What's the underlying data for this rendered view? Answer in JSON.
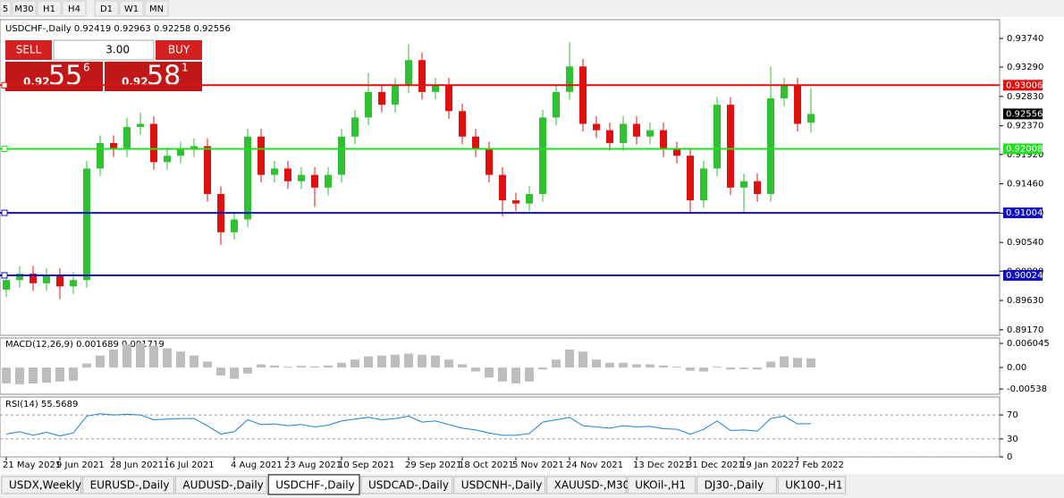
{
  "toolbar": [
    "5",
    "M30",
    "H1",
    "H4",
    "D1",
    "W1",
    "MN"
  ],
  "trade_panel": {
    "sell": "SELL",
    "buy": "BUY",
    "lots": "3.00",
    "bid": {
      "prefix": "0.92",
      "big": "55",
      "sup": "6"
    },
    "ask": {
      "prefix": "0.92",
      "big": "58",
      "sup": "1"
    }
  },
  "tabs": [
    "USDX,Weekly",
    "EURUSD-,Daily",
    "AUDUSD-,Daily",
    "USDCHF-,Daily",
    "USDCAD-,Daily",
    "USDCNH-,Daily",
    "XAUUSD-,M30",
    "UKOil-,H1",
    "DJ30-,Daily",
    "UK100-,H1"
  ],
  "active_tab": "USDCHF-,Daily",
  "chart_data": [
    {
      "type": "candlestick",
      "title": "USDCHF-,Daily 0.92419 0.92963 0.92258 0.92556",
      "categories": [
        "21 May 2021",
        null,
        null,
        null,
        "9 Jun 2021",
        null,
        null,
        null,
        "28 Jun 2021",
        null,
        null,
        null,
        "16 Jul 2021",
        null,
        null,
        null,
        null,
        "4 Aug 2021",
        null,
        null,
        null,
        "23 Aug 2021",
        null,
        null,
        null,
        "10 Sep 2021",
        null,
        null,
        null,
        null,
        "29 Sep 2021",
        null,
        null,
        null,
        "18 Oct 2021",
        null,
        null,
        null,
        "5 Nov 2021",
        null,
        null,
        null,
        "24 Nov 2021",
        null,
        null,
        null,
        null,
        "13 Dec 2021",
        null,
        null,
        null,
        "31 Dec 2021",
        null,
        null,
        null,
        "19 Jan 2022",
        null,
        null,
        null,
        "7 Feb 2022",
        null
      ],
      "open": [
        0.898,
        0.8995,
        0.9005,
        0.899,
        0.9002,
        0.8985,
        0.8995,
        0.917,
        0.921,
        0.92,
        0.9235,
        0.924,
        0.918,
        0.919,
        0.92,
        0.9205,
        0.913,
        0.907,
        0.909,
        0.922,
        0.916,
        0.917,
        0.915,
        0.916,
        0.914,
        0.916,
        0.922,
        0.925,
        0.929,
        0.927,
        0.93,
        0.934,
        0.929,
        0.93,
        0.926,
        0.922,
        0.92,
        0.916,
        0.912,
        0.9115,
        0.913,
        0.925,
        0.929,
        0.933,
        0.924,
        0.923,
        0.921,
        0.924,
        0.922,
        0.923,
        0.92,
        0.919,
        0.912,
        0.917,
        0.927,
        0.914,
        0.915,
        0.913,
        0.928,
        0.93,
        0.92419
      ],
      "high": [
        0.9007,
        0.9017,
        0.9017,
        0.9014,
        0.9014,
        0.9007,
        0.9182,
        0.9222,
        0.9222,
        0.925,
        0.9258,
        0.9252,
        0.9202,
        0.9212,
        0.9217,
        0.9217,
        0.9142,
        0.9102,
        0.9232,
        0.9232,
        0.9182,
        0.9182,
        0.9172,
        0.9172,
        0.9172,
        0.9232,
        0.9262,
        0.932,
        0.9302,
        0.9312,
        0.9365,
        0.9352,
        0.9312,
        0.9312,
        0.9272,
        0.9232,
        0.9212,
        0.9172,
        0.9132,
        0.9142,
        0.9262,
        0.9302,
        0.9368,
        0.9342,
        0.9252,
        0.9242,
        0.9252,
        0.9252,
        0.9242,
        0.9242,
        0.9212,
        0.9202,
        0.9182,
        0.9282,
        0.9282,
        0.9162,
        0.9162,
        0.933,
        0.9312,
        0.9312,
        0.92963
      ],
      "low": [
        0.8968,
        0.8983,
        0.8978,
        0.8978,
        0.8965,
        0.8973,
        0.8983,
        0.9158,
        0.9188,
        0.9188,
        0.9223,
        0.9168,
        0.9168,
        0.9178,
        0.9188,
        0.9118,
        0.905,
        0.9058,
        0.9078,
        0.9148,
        0.9148,
        0.9138,
        0.9138,
        0.911,
        0.9128,
        0.9148,
        0.9208,
        0.9238,
        0.9258,
        0.9258,
        0.9288,
        0.9278,
        0.9278,
        0.9248,
        0.9208,
        0.9188,
        0.9148,
        0.9095,
        0.9103,
        0.9103,
        0.9118,
        0.9238,
        0.9278,
        0.9228,
        0.9218,
        0.9198,
        0.9198,
        0.9208,
        0.9208,
        0.9188,
        0.9178,
        0.91,
        0.9108,
        0.9158,
        0.9128,
        0.91,
        0.9118,
        0.9118,
        0.9268,
        0.9228,
        0.92258
      ],
      "close": [
        0.8995,
        0.9005,
        0.899,
        0.9002,
        0.8985,
        0.8995,
        0.917,
        0.921,
        0.92,
        0.9235,
        0.924,
        0.918,
        0.919,
        0.92,
        0.9205,
        0.913,
        0.907,
        0.909,
        0.922,
        0.916,
        0.917,
        0.915,
        0.916,
        0.914,
        0.916,
        0.922,
        0.925,
        0.929,
        0.927,
        0.93,
        0.934,
        0.929,
        0.93,
        0.926,
        0.922,
        0.92,
        0.916,
        0.912,
        0.9115,
        0.913,
        0.925,
        0.929,
        0.933,
        0.924,
        0.923,
        0.921,
        0.924,
        0.922,
        0.923,
        0.92,
        0.919,
        0.912,
        0.917,
        0.927,
        0.914,
        0.915,
        0.913,
        0.928,
        0.93,
        0.924,
        0.92556
      ],
      "up_color": "#2fc12f",
      "down_color": "#e01010",
      "ylim": [
        0.89084,
        0.94034
      ],
      "yticks": [
        {
          "value": 0.9374,
          "label": "0.93740"
        },
        {
          "value": 0.9329,
          "label": "0.93290"
        },
        {
          "value": 0.9283,
          "label": "0.92830"
        },
        {
          "value": 0.9237,
          "label": "0.92370"
        },
        {
          "value": 0.9192,
          "label": "0.91920"
        },
        {
          "value": 0.9146,
          "label": "0.91460"
        },
        {
          "value": 0.91,
          "label": "0.91000"
        },
        {
          "value": 0.9054,
          "label": "0.90540"
        },
        {
          "value": 0.9009,
          "label": "0.90090"
        },
        {
          "value": 0.8963,
          "label": "0.89630"
        },
        {
          "value": 0.8917,
          "label": "0.89170"
        }
      ],
      "hlines": [
        {
          "value": 0.93006,
          "label": "0.93006",
          "color": "#e01010"
        },
        {
          "value": 0.92008,
          "label": "0.92008",
          "color": "#22dd22"
        },
        {
          "value": 0.91004,
          "label": "0.91004",
          "color": "#1010c0"
        },
        {
          "value": 0.90024,
          "label": "0.90024",
          "color": "#1010c0"
        }
      ],
      "price": {
        "value": 0.92556,
        "label": "0.92556",
        "color": "#000000"
      }
    },
    {
      "type": "histogram",
      "title": "MACD(12,26,9) 0.001689 0.001719",
      "color": "#bdbdbd",
      "values": [
        -0.004,
        -0.0042,
        -0.004,
        -0.0038,
        -0.0035,
        -0.0033,
        0.001,
        0.003,
        0.0045,
        0.0058,
        0.006,
        0.0055,
        0.0048,
        0.004,
        0.003,
        0.0015,
        -0.002,
        -0.0028,
        -0.0015,
        0.0008,
        0.0005,
        0.0002,
        0.0004,
        0.0003,
        0.0005,
        0.0012,
        0.002,
        0.0028,
        0.003,
        0.0032,
        0.0035,
        0.0032,
        0.003,
        0.002,
        0.0008,
        -0.001,
        -0.0025,
        -0.0035,
        -0.004,
        -0.0035,
        -0.0005,
        0.002,
        0.0045,
        0.004,
        0.002,
        0.0012,
        0.0012,
        0.0008,
        0.0008,
        0.0005,
        0.0002,
        -0.0008,
        -0.001,
        0.0002,
        -0.0005,
        -0.0004,
        -0.0005,
        0.0015,
        0.0028,
        0.0024,
        0.0023
      ],
      "ylim": [
        -0.0067,
        0.0074
      ],
      "yticks": [
        0.006045,
        {
          "value": 0,
          "label": "0.00"
        },
        -0.00538
      ]
    },
    {
      "type": "line",
      "title": "RSI(14) 55.5689",
      "color": "#1e7fd6",
      "values": [
        38,
        42,
        36,
        41,
        35,
        40,
        68,
        72,
        70,
        71,
        70,
        62,
        63,
        64,
        64,
        52,
        38,
        42,
        62,
        54,
        55,
        52,
        54,
        50,
        53,
        60,
        63,
        66,
        62,
        64,
        68,
        58,
        60,
        54,
        48,
        45,
        40,
        36,
        36,
        39,
        58,
        62,
        66,
        52,
        50,
        48,
        52,
        50,
        51,
        47,
        46,
        38,
        46,
        60,
        44,
        45,
        43,
        64,
        68,
        55,
        55.5689
      ],
      "ylim": [
        0,
        100
      ],
      "yticks": [
        70,
        30,
        0
      ]
    }
  ]
}
